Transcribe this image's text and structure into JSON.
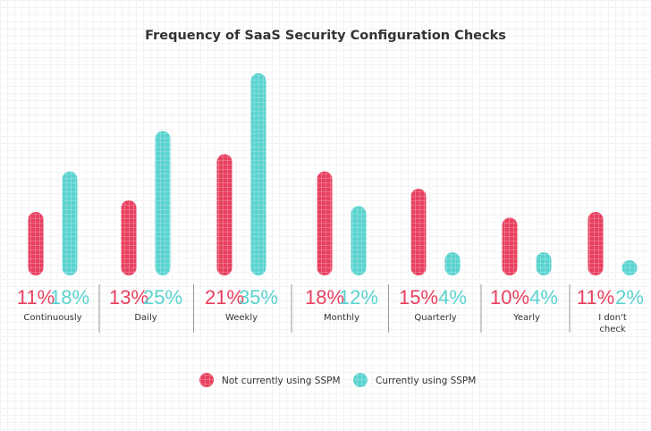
{
  "chart_data": {
    "type": "bar",
    "title": "Frequency of SaaS Security Configuration Checks",
    "categories": [
      "Continuously",
      "Daily",
      "Weekly",
      "Monthly",
      "Quarterly",
      "Yearly",
      "I don't check"
    ],
    "series": [
      {
        "name": "Not currently using SSPM",
        "color": "#e8405f",
        "values": [
          11,
          13,
          21,
          18,
          15,
          10,
          11
        ]
      },
      {
        "name": "Currently using SSPM",
        "color": "#5ad3cf",
        "values": [
          18,
          25,
          35,
          12,
          4,
          4,
          2
        ]
      }
    ],
    "unit": "%",
    "legend": "bottom",
    "grid": false
  }
}
